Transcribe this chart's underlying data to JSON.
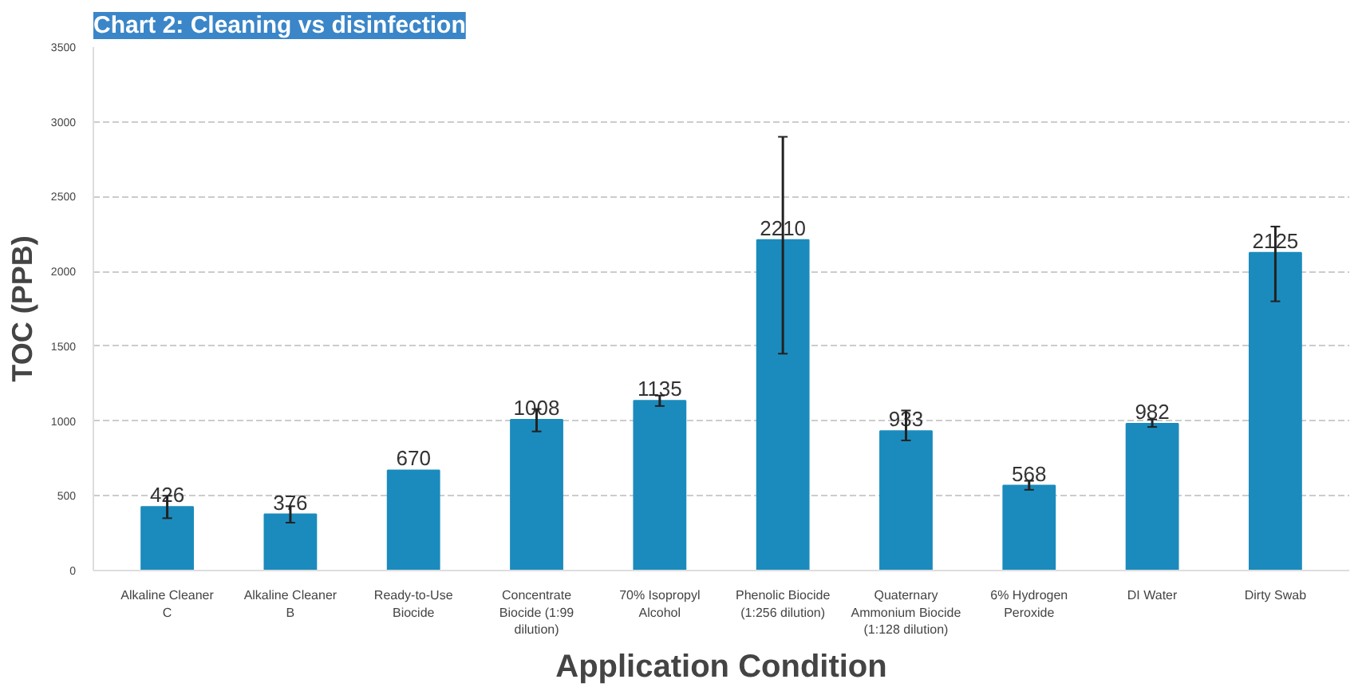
{
  "chart_data": {
    "type": "bar",
    "title": "Chart 2: Cleaning vs disinfection",
    "xlabel": "Application Condition",
    "ylabel": "TOC (PPB)",
    "categories": [
      "Alkaline Cleaner C",
      "Alkaline Cleaner B",
      "Ready-to-Use Biocide",
      "Concentrate Biocide (1:99 dilution)",
      "70% Isopropyl Alcohol",
      "Phenolic Biocide (1:256 dilution)",
      "Quaternary Ammonium Biocide (1:128 dilution)",
      "6% Hydrogen Peroxide",
      "DI Water",
      "Dirty Swab"
    ],
    "values": [
      426,
      376,
      670,
      1008,
      1135,
      2210,
      933,
      568,
      982,
      2125
    ],
    "errors": [
      [
        350,
        500
      ],
      [
        320,
        430
      ],
      null,
      [
        930,
        1080
      ],
      [
        1100,
        1170
      ],
      [
        1450,
        2900
      ],
      [
        870,
        1070
      ],
      [
        540,
        600
      ],
      [
        960,
        1010
      ],
      [
        1800,
        2300
      ]
    ],
    "color": "#1b8bbd",
    "data_labels": true,
    "ylim": [
      0,
      3500
    ],
    "yticks": [
      0,
      500,
      1000,
      1500,
      2000,
      2500,
      3000,
      3500
    ],
    "grid": "y"
  }
}
